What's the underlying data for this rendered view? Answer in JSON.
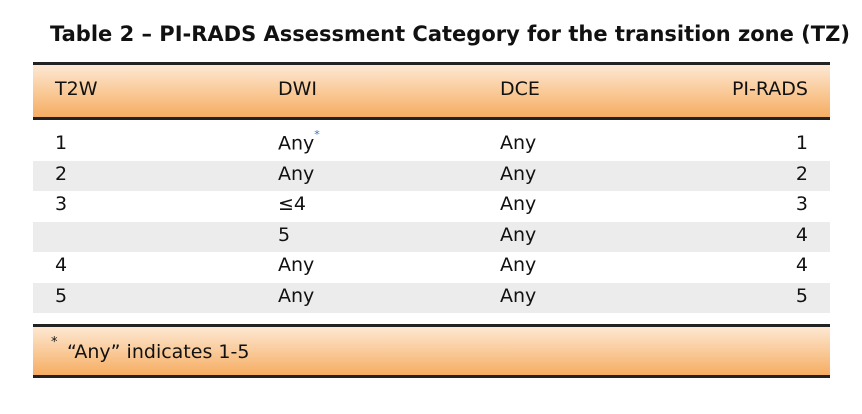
{
  "title": "Table 2 – PI-RADS Assessment Category for the transition zone (TZ)",
  "table": {
    "header": [
      "T2W",
      "DWI",
      "DCE",
      "PI-RADS"
    ],
    "rows": [
      [
        "1",
        "Any",
        "Any",
        "1"
      ],
      [
        "2",
        "Any",
        "Any",
        "2"
      ],
      [
        "3",
        "≤4",
        "Any",
        "3"
      ],
      [
        null,
        "5",
        "Any",
        "4"
      ],
      [
        "4",
        "Any",
        "Any",
        "4"
      ],
      [
        "5",
        "Any",
        "Any",
        "5"
      ]
    ],
    "cell_marker": "*"
  },
  "footnote": {
    "marker": "*",
    "text": "“Any” indicates 1-5"
  }
}
